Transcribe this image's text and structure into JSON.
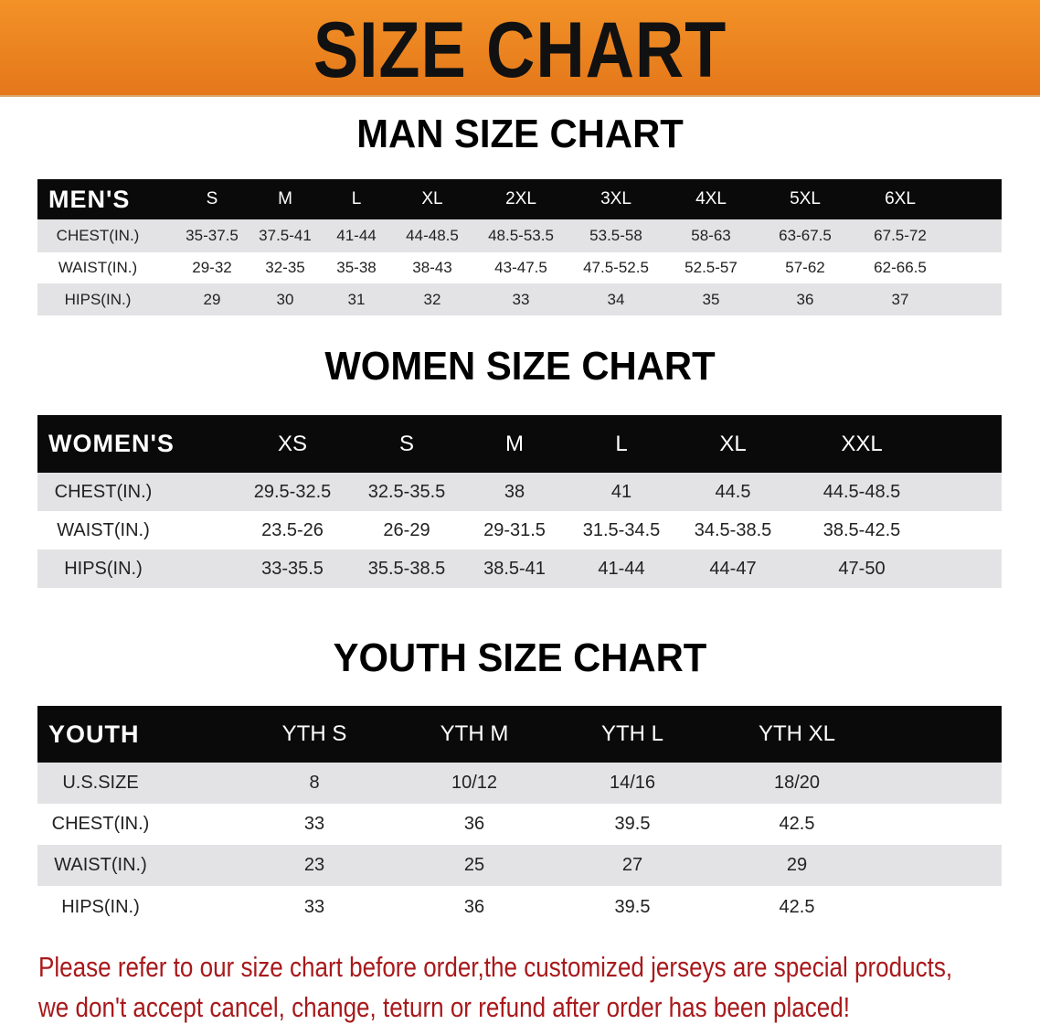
{
  "banner": {
    "title": "SIZE CHART",
    "background": "#ef8a22"
  },
  "men": {
    "title": "MAN SIZE CHART",
    "header": [
      "MEN'S",
      "S",
      "M",
      "L",
      "XL",
      "2XL",
      "3XL",
      "4XL",
      "5XL",
      "6XL"
    ],
    "rows": [
      [
        "CHEST(IN.)",
        "35-37.5",
        "37.5-41",
        "41-44",
        "44-48.5",
        "48.5-53.5",
        "53.5-58",
        "58-63",
        "63-67.5",
        "67.5-72"
      ],
      [
        "WAIST(IN.)",
        "29-32",
        "32-35",
        "35-38",
        "38-43",
        "43-47.5",
        "47.5-52.5",
        "52.5-57",
        "57-62",
        "62-66.5"
      ],
      [
        "HIPS(IN.)",
        "29",
        "30",
        "31",
        "32",
        "33",
        "34",
        "35",
        "36",
        "37"
      ]
    ]
  },
  "women": {
    "title": "WOMEN SIZE CHART",
    "header": [
      "WOMEN'S",
      "XS",
      "S",
      "M",
      "L",
      "XL",
      "XXL"
    ],
    "rows": [
      [
        "CHEST(IN.)",
        "29.5-32.5",
        "32.5-35.5",
        "38",
        "41",
        "44.5",
        "44.5-48.5"
      ],
      [
        "WAIST(IN.)",
        "23.5-26",
        "26-29",
        "29-31.5",
        "31.5-34.5",
        "34.5-38.5",
        "38.5-42.5"
      ],
      [
        "HIPS(IN.)",
        "33-35.5",
        "35.5-38.5",
        "38.5-41",
        "41-44",
        "44-47",
        "47-50"
      ]
    ]
  },
  "youth": {
    "title": "YOUTH SIZE CHART",
    "header": [
      "YOUTH",
      "YTH S",
      "YTH M",
      "YTH L",
      "YTH XL"
    ],
    "rows": [
      [
        "U.S.SIZE",
        "8",
        "10/12",
        "14/16",
        "18/20"
      ],
      [
        "CHEST(IN.)",
        "33",
        "36",
        "39.5",
        "42.5"
      ],
      [
        "WAIST(IN.)",
        "23",
        "25",
        "27",
        "29"
      ],
      [
        "HIPS(IN.)",
        "33",
        "36",
        "39.5",
        "42.5"
      ]
    ]
  },
  "note": {
    "line1": "Please refer to our size chart before order,the customized jerseys are special products,",
    "line2": "we don't accept cancel, change, teturn or refund after order has been placed!",
    "color": "#a8191c"
  }
}
